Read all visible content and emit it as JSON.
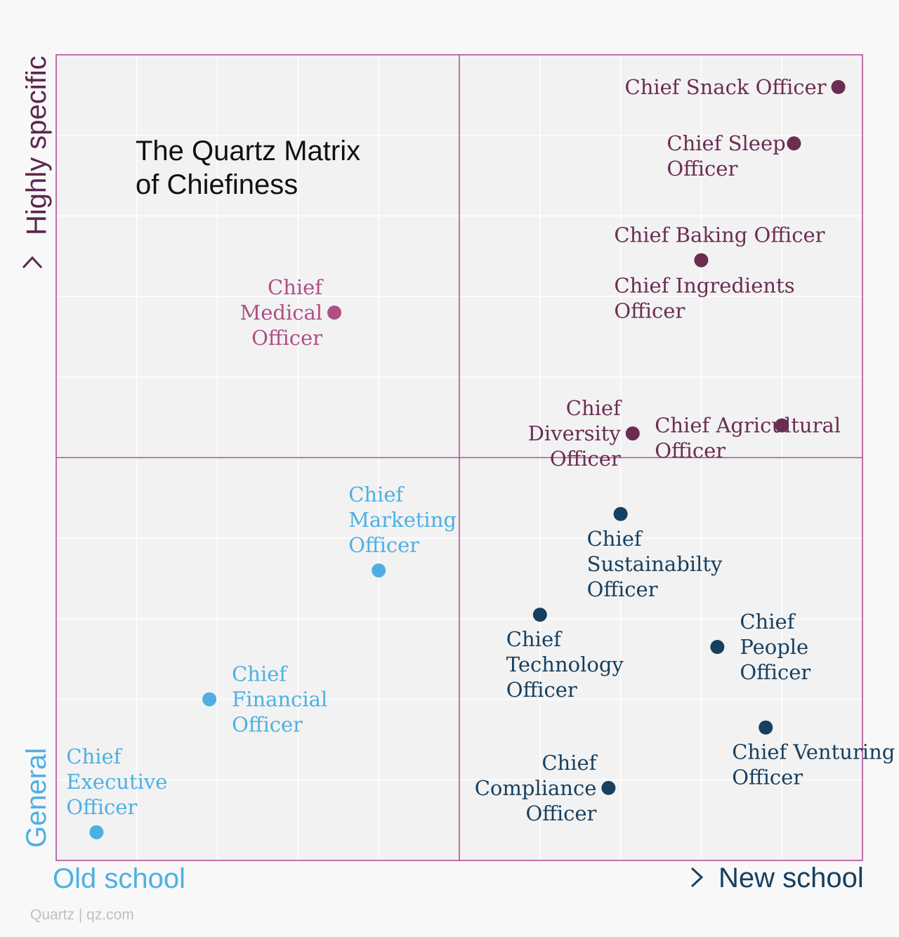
{
  "chart_data": {
    "type": "scatter",
    "title": [
      "The Quartz Matrix",
      "of Chiefiness"
    ],
    "xlabel": {
      "low": "Old school",
      "high": "New school"
    },
    "ylabel": {
      "low": "General",
      "high": "Highly specific"
    },
    "xlim": [
      0,
      10
    ],
    "ylim": [
      0,
      10
    ],
    "grid": true,
    "colors": {
      "light_blue": "#4eb0e2",
      "dark_blue": "#173f5f",
      "plum": "#6b2d52",
      "pink": "#b04f86",
      "quadrant_line": "#b04f9b"
    },
    "points": [
      {
        "name": "Chief Snack Officer",
        "lines": [
          "Chief Snack Officer"
        ],
        "x": 9.7,
        "y": 9.6,
        "color": "plum",
        "label_pos": "left"
      },
      {
        "name": "Chief Sleep Officer",
        "lines": [
          "Chief Sleep",
          "Officer"
        ],
        "x": 9.15,
        "y": 8.9,
        "color": "plum",
        "label_pos": "left-top"
      },
      {
        "name": "Chief Baking Officer / Chief Ingredients Officer",
        "lines": [
          "Chief Baking Officer",
          "",
          "Chief Ingredients",
          "Officer"
        ],
        "x": 8.0,
        "y": 7.45,
        "color": "plum",
        "label_pos": "around"
      },
      {
        "name": "Chief Medical Officer",
        "lines": [
          "Chief",
          "Medical",
          "Officer"
        ],
        "x": 3.45,
        "y": 6.8,
        "color": "pink",
        "label_pos": "left"
      },
      {
        "name": "Chief Diversity Officer",
        "lines": [
          "Chief",
          "Diversity",
          "Officer"
        ],
        "x": 7.15,
        "y": 5.3,
        "color": "plum",
        "label_pos": "left"
      },
      {
        "name": "Chief Agricultural Officer",
        "lines": [
          "Chief Agricultural",
          "Officer"
        ],
        "x": 9.0,
        "y": 5.4,
        "color": "plum",
        "label_pos": "left-top"
      },
      {
        "name": "Chief Marketing Officer",
        "lines": [
          "Chief",
          "Marketing",
          "Officer"
        ],
        "x": 4.0,
        "y": 3.6,
        "color": "light_blue",
        "label_pos": "above"
      },
      {
        "name": "Chief Sustainabilty Officer",
        "lines": [
          "Chief",
          "Sustainabilty",
          "Officer"
        ],
        "x": 7.0,
        "y": 4.3,
        "color": "dark_blue",
        "label_pos": "below"
      },
      {
        "name": "Chief Technology Officer",
        "lines": [
          "Chief",
          "Technology",
          "Officer"
        ],
        "x": 6.0,
        "y": 3.05,
        "color": "dark_blue",
        "label_pos": "below"
      },
      {
        "name": "Chief People Officer",
        "lines": [
          "Chief",
          "People",
          "Officer"
        ],
        "x": 8.2,
        "y": 2.65,
        "color": "dark_blue",
        "label_pos": "right"
      },
      {
        "name": "Chief Financial Officer",
        "lines": [
          "Chief",
          "Financial",
          "Officer"
        ],
        "x": 1.9,
        "y": 2.0,
        "color": "light_blue",
        "label_pos": "right"
      },
      {
        "name": "Chief Venturing Officer",
        "lines": [
          "Chief Venturing",
          "Officer"
        ],
        "x": 8.8,
        "y": 1.65,
        "color": "dark_blue",
        "label_pos": "below"
      },
      {
        "name": "Chief Compliance Officer",
        "lines": [
          "Chief",
          "Compliance",
          "Officer"
        ],
        "x": 6.85,
        "y": 0.9,
        "color": "dark_blue",
        "label_pos": "left"
      },
      {
        "name": "Chief Executive Officer",
        "lines": [
          "Chief",
          "Executive",
          "Officer"
        ],
        "x": 0.5,
        "y": 0.35,
        "color": "light_blue",
        "label_pos": "above"
      }
    ]
  },
  "credit": "Quartz | qz.com"
}
